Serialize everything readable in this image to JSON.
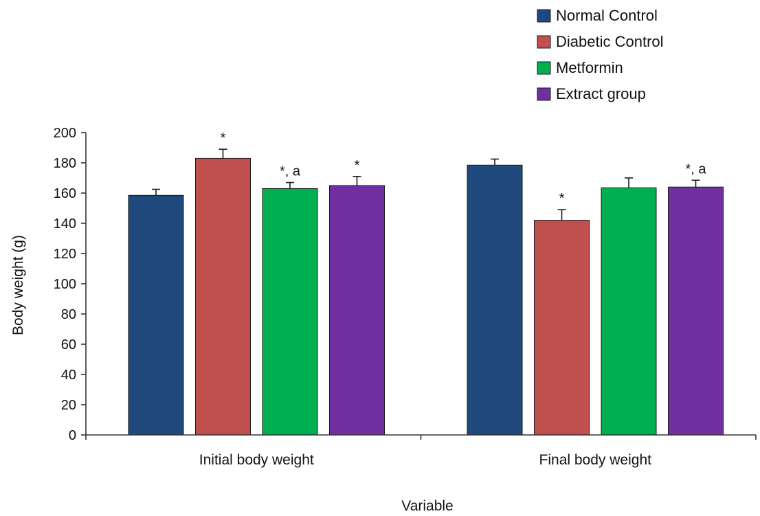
{
  "chart_data": {
    "type": "bar",
    "title": "",
    "xlabel": "Variable",
    "ylabel": "Body weight (g)",
    "ylim": [
      0,
      200
    ],
    "yticks": [
      0,
      20,
      40,
      60,
      80,
      100,
      120,
      140,
      160,
      180,
      200
    ],
    "grid": false,
    "legend_position": "top-right",
    "categories": [
      "Initial body weight",
      "Final body weight"
    ],
    "series": [
      {
        "name": "Normal Control",
        "color": "#1f497d",
        "values": [
          158.5,
          178.5
        ],
        "errors": [
          4,
          4
        ],
        "annotations": [
          "",
          ""
        ]
      },
      {
        "name": "Diabetic Control",
        "color": "#c0504d",
        "values": [
          183,
          142
        ],
        "errors": [
          6,
          7
        ],
        "annotations": [
          "*",
          "*"
        ]
      },
      {
        "name": "Metformin",
        "color": "#00b050",
        "values": [
          163,
          163.5
        ],
        "errors": [
          4,
          6.5
        ],
        "annotations": [
          "*, a",
          ""
        ]
      },
      {
        "name": "Extract group",
        "color": "#7030a0",
        "values": [
          165,
          164
        ],
        "errors": [
          6,
          4.5
        ],
        "annotations": [
          "*",
          "*, a"
        ]
      }
    ]
  }
}
